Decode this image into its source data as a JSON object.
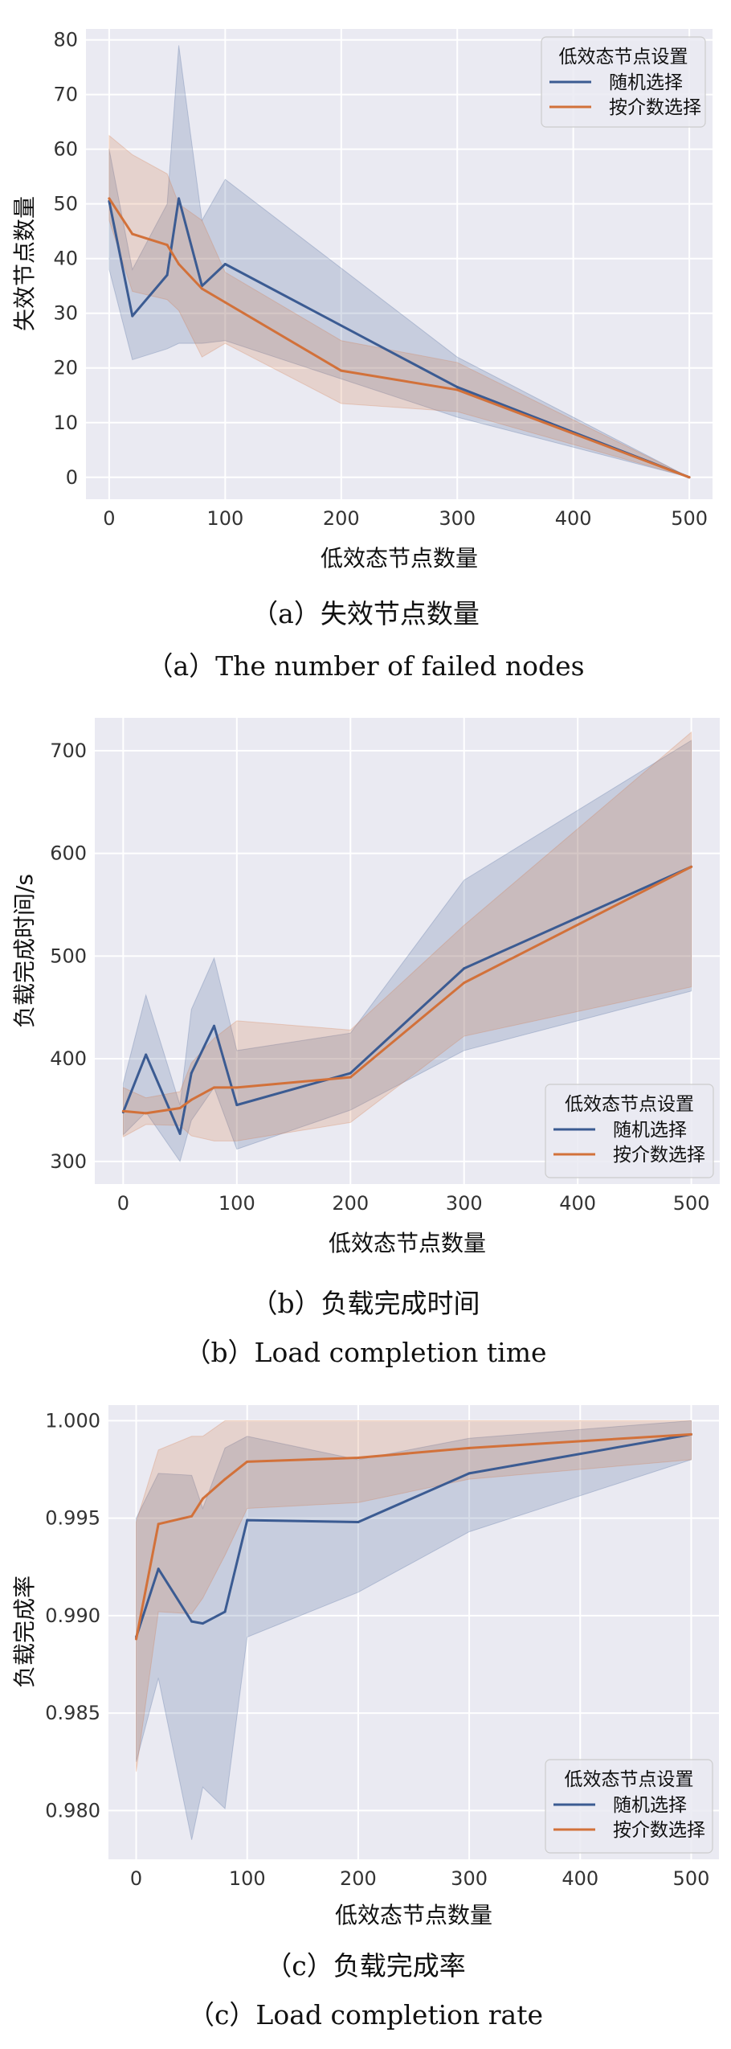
{
  "chart_data": [
    {
      "type": "line",
      "caption_cn": "（a）失效节点数量",
      "caption_en": "（a）The number of failed nodes",
      "xlabel": "低效态节点数量",
      "ylabel": "失效节点数量",
      "xlim": [
        -20,
        520
      ],
      "ylim": [
        -4,
        82
      ],
      "xticks": [
        0,
        100,
        200,
        300,
        400,
        500
      ],
      "yticks": [
        0,
        10,
        20,
        30,
        40,
        50,
        60,
        70,
        80
      ],
      "legend": {
        "title": "低效态节点设置",
        "position": "top-right"
      },
      "series": [
        {
          "name": "随机选择",
          "color": "#3b5b92",
          "x": [
            0,
            20,
            50,
            60,
            80,
            100,
            300,
            500
          ],
          "y": [
            50.5,
            29.5,
            37,
            51,
            35,
            39,
            16.5,
            0
          ],
          "lower": [
            38,
            21.5,
            23.5,
            24.5,
            24.5,
            25,
            11,
            0
          ],
          "upper": [
            60,
            38,
            50,
            79,
            47,
            54.5,
            22,
            0
          ]
        },
        {
          "name": "按介数选择",
          "color": "#d2713a",
          "x": [
            0,
            20,
            50,
            60,
            80,
            100,
            200,
            300,
            500
          ],
          "y": [
            51,
            44.5,
            42.5,
            39,
            34.5,
            32,
            19.5,
            16,
            0
          ],
          "lower": [
            47,
            34,
            32.5,
            30.5,
            22,
            24.5,
            13.5,
            12,
            0
          ],
          "upper": [
            62.5,
            59,
            55.5,
            50,
            47,
            37.5,
            25,
            21,
            0
          ]
        }
      ]
    },
    {
      "type": "line",
      "caption_cn": "（b）负载完成时间",
      "caption_en": "（b）Load completion time",
      "xlabel": "低效态节点数量",
      "ylabel": "负载完成时间/s",
      "xlim": [
        -25,
        525
      ],
      "ylim": [
        278,
        732
      ],
      "xticks": [
        0,
        100,
        200,
        300,
        400,
        500
      ],
      "yticks": [
        300,
        400,
        500,
        600,
        700
      ],
      "legend": {
        "title": "低效态节点设置",
        "position": "bottom-right"
      },
      "series": [
        {
          "name": "随机选择",
          "color": "#3b5b92",
          "x": [
            0,
            20,
            50,
            60,
            80,
            100,
            200,
            300,
            500
          ],
          "y": [
            348,
            404,
            327,
            386,
            432,
            355,
            386,
            488,
            587
          ],
          "lower": [
            326,
            348,
            300,
            340,
            372,
            312,
            350,
            408,
            466
          ],
          "upper": [
            376,
            462,
            355,
            448,
            498,
            408,
            425,
            574,
            710
          ]
        },
        {
          "name": "按介数选择",
          "color": "#d2713a",
          "x": [
            0,
            20,
            50,
            60,
            80,
            100,
            200,
            300,
            500
          ],
          "y": [
            349,
            347,
            352,
            360,
            372,
            372,
            382,
            474,
            587
          ],
          "lower": [
            324,
            336,
            335,
            325,
            320,
            320,
            338,
            422,
            470
          ],
          "upper": [
            372,
            362,
            368,
            396,
            420,
            437,
            428,
            530,
            718
          ]
        }
      ]
    },
    {
      "type": "line",
      "caption_cn": "（c）负载完成率",
      "caption_en": "（c）Load completion rate",
      "xlabel": "低效态节点数量",
      "ylabel": "负载完成率",
      "xlim": [
        -25,
        525
      ],
      "ylim": [
        0.9775,
        1.0008
      ],
      "xticks": [
        0,
        100,
        200,
        300,
        400,
        500
      ],
      "yticks": [
        0.98,
        0.985,
        0.99,
        0.995,
        1.0
      ],
      "ytick_labels": [
        "0.980",
        "0.985",
        "0.990",
        "0.995",
        "1.000"
      ],
      "legend": {
        "title": "低效态节点设置",
        "position": "bottom-right"
      },
      "series": [
        {
          "name": "随机选择",
          "color": "#3b5b92",
          "x": [
            0,
            20,
            50,
            60,
            80,
            100,
            200,
            300,
            500
          ],
          "y": [
            0.9889,
            0.9924,
            0.9897,
            0.9896,
            0.9902,
            0.9949,
            0.9948,
            0.9973,
            0.9993
          ],
          "lower": [
            0.9825,
            0.9868,
            0.9785,
            0.9812,
            0.9801,
            0.9889,
            0.9912,
            0.9943,
            0.998
          ],
          "upper": [
            0.995,
            0.9973,
            0.9972,
            0.9955,
            0.9986,
            0.9992,
            0.998,
            0.9991,
            1.0
          ]
        },
        {
          "name": "按介数选择",
          "color": "#d2713a",
          "x": [
            0,
            20,
            50,
            60,
            80,
            100,
            200,
            300,
            500
          ],
          "y": [
            0.9888,
            0.9947,
            0.9951,
            0.996,
            0.997,
            0.9979,
            0.9981,
            0.9986,
            0.9993
          ],
          "lower": [
            0.982,
            0.9902,
            0.9901,
            0.9909,
            0.9931,
            0.9955,
            0.9958,
            0.997,
            0.998
          ],
          "upper": [
            0.9948,
            0.9985,
            0.9992,
            0.9992,
            1.0,
            1.0,
            1.0,
            1.0,
            1.0
          ]
        }
      ]
    }
  ]
}
